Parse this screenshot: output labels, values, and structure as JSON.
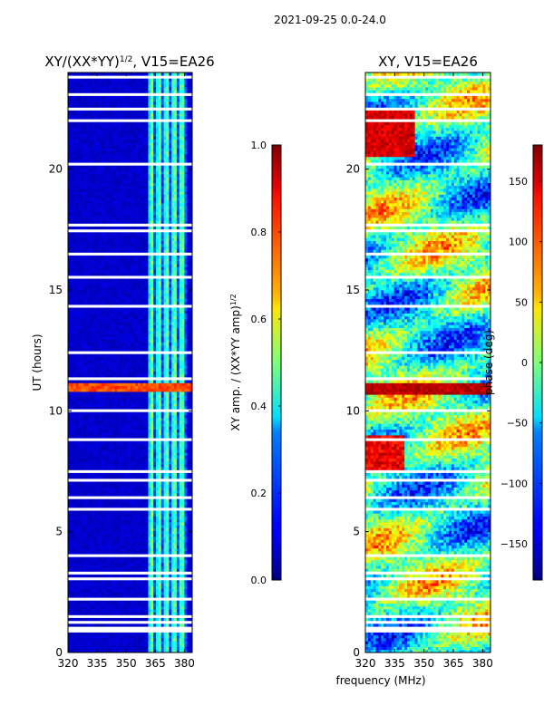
{
  "figure_title": "2021-09-25 0.0-24.0",
  "shared_xlabel": "frequency (MHz)",
  "chart_data": [
    {
      "type": "heatmap",
      "title": "XY/(XX*YY)",
      "title_exponent": "1/2",
      "title_suffix": ", V15=EA26",
      "xlabel": "",
      "ylabel": "UT (hours)",
      "xlim": [
        320,
        384
      ],
      "ylim": [
        0,
        24
      ],
      "xticks": [
        320,
        335,
        350,
        365,
        380
      ],
      "yticks": [
        0,
        5,
        10,
        15,
        20
      ],
      "colorbar": {
        "label": "XY amp. / (XX*YY amp)",
        "label_exponent": "1/2",
        "range": [
          0.0,
          1.0
        ],
        "ticks": [
          0.0,
          0.2,
          0.4,
          0.6,
          0.8,
          1.0
        ],
        "tick_labels": [
          "0.0",
          "0.2",
          "0.4",
          "0.6",
          "0.8",
          "1.0"
        ],
        "colormap": "jet"
      },
      "description_values": {
        "background_value": 0.05,
        "active_band_mhz": [
          362,
          381
        ],
        "active_band_value_range": [
          0.2,
          0.6
        ],
        "bright_row_ut": 10.95,
        "bright_row_value": 0.75
      },
      "flagged_gaps_ut": [
        [
          0.1,
          0.15
        ],
        [
          0.35,
          0.4
        ],
        [
          0.6,
          0.65
        ],
        [
          0.85,
          0.9
        ],
        [
          1.0,
          1.05
        ],
        [
          1.25,
          1.3
        ],
        [
          1.5,
          1.55
        ],
        [
          1.75,
          1.8
        ],
        [
          2.0,
          2.05
        ],
        [
          2.2,
          2.25
        ],
        [
          2.5,
          2.55
        ],
        [
          2.95,
          3.1
        ],
        [
          3.3,
          3.35
        ],
        [
          3.55,
          3.6
        ],
        [
          3.8,
          3.85
        ],
        [
          4.0,
          4.05
        ],
        [
          5.0,
          5.05
        ],
        [
          5.9,
          5.95
        ],
        [
          6.4,
          6.45
        ],
        [
          7.1,
          7.15
        ],
        [
          7.5,
          7.55
        ],
        [
          8.0,
          8.05
        ],
        [
          8.5,
          8.55
        ],
        [
          8.8,
          8.85
        ],
        [
          9.2,
          9.25
        ],
        [
          10.0,
          10.05
        ],
        [
          10.4,
          10.45
        ],
        [
          11.25,
          11.35
        ],
        [
          11.6,
          11.65
        ],
        [
          12.4,
          12.45
        ],
        [
          12.9,
          12.95
        ],
        [
          13.3,
          13.35
        ],
        [
          13.9,
          13.95
        ],
        [
          14.3,
          14.35
        ],
        [
          15.5,
          15.55
        ],
        [
          15.9,
          15.95
        ],
        [
          16.5,
          16.55
        ],
        [
          17.0,
          17.05
        ],
        [
          17.4,
          17.5
        ],
        [
          17.65,
          17.75
        ],
        [
          19.3,
          19.35
        ],
        [
          20.2,
          20.25
        ],
        [
          21.2,
          21.25
        ],
        [
          22.0,
          22.05
        ],
        [
          22.5,
          22.55
        ],
        [
          22.8,
          22.85
        ],
        [
          23.0,
          23.2
        ],
        [
          23.35,
          23.4
        ],
        [
          23.6,
          23.65
        ],
        [
          23.8,
          23.85
        ]
      ]
    },
    {
      "type": "heatmap",
      "title": "XY, V15=EA26",
      "xlabel": "frequency (MHz)",
      "ylabel": "",
      "xlim": [
        320,
        384
      ],
      "ylim": [
        0,
        24
      ],
      "xticks": [
        320,
        335,
        350,
        365,
        380
      ],
      "yticks": [
        0,
        5,
        10,
        15,
        20
      ],
      "colorbar": {
        "label": "phase (deg)",
        "range": [
          -180,
          180
        ],
        "ticks": [
          -150,
          -100,
          -50,
          0,
          50,
          100,
          150
        ],
        "tick_labels": [
          "−150",
          "−100",
          "−50",
          "0",
          "50",
          "100",
          "150"
        ],
        "colormap": "jet"
      },
      "flagged_gaps_ut": [
        [
          0.1,
          0.15
        ],
        [
          0.35,
          0.4
        ],
        [
          0.6,
          0.65
        ],
        [
          0.85,
          0.9
        ],
        [
          1.0,
          1.05
        ],
        [
          1.25,
          1.3
        ],
        [
          1.5,
          1.55
        ],
        [
          1.75,
          1.8
        ],
        [
          2.0,
          2.05
        ],
        [
          2.2,
          2.25
        ],
        [
          2.5,
          2.55
        ],
        [
          2.95,
          3.1
        ],
        [
          3.3,
          3.35
        ],
        [
          3.55,
          3.6
        ],
        [
          3.8,
          3.85
        ],
        [
          4.0,
          4.05
        ],
        [
          5.0,
          5.05
        ],
        [
          5.9,
          5.95
        ],
        [
          6.4,
          6.45
        ],
        [
          7.1,
          7.15
        ],
        [
          7.5,
          7.55
        ],
        [
          8.0,
          8.05
        ],
        [
          8.5,
          8.55
        ],
        [
          8.8,
          8.85
        ],
        [
          9.2,
          9.25
        ],
        [
          10.0,
          10.05
        ],
        [
          10.4,
          10.45
        ],
        [
          11.25,
          11.35
        ],
        [
          11.6,
          11.65
        ],
        [
          12.4,
          12.45
        ],
        [
          12.9,
          12.95
        ],
        [
          13.3,
          13.35
        ],
        [
          13.9,
          13.95
        ],
        [
          14.3,
          14.35
        ],
        [
          15.5,
          15.55
        ],
        [
          15.9,
          15.95
        ],
        [
          16.5,
          16.55
        ],
        [
          17.0,
          17.05
        ],
        [
          17.4,
          17.5
        ],
        [
          17.65,
          17.75
        ],
        [
          19.3,
          19.35
        ],
        [
          20.2,
          20.25
        ],
        [
          21.2,
          21.25
        ],
        [
          22.0,
          22.05
        ],
        [
          22.5,
          22.55
        ],
        [
          22.8,
          22.85
        ],
        [
          23.0,
          23.2
        ],
        [
          23.35,
          23.4
        ],
        [
          23.6,
          23.65
        ],
        [
          23.8,
          23.85
        ]
      ]
    }
  ]
}
